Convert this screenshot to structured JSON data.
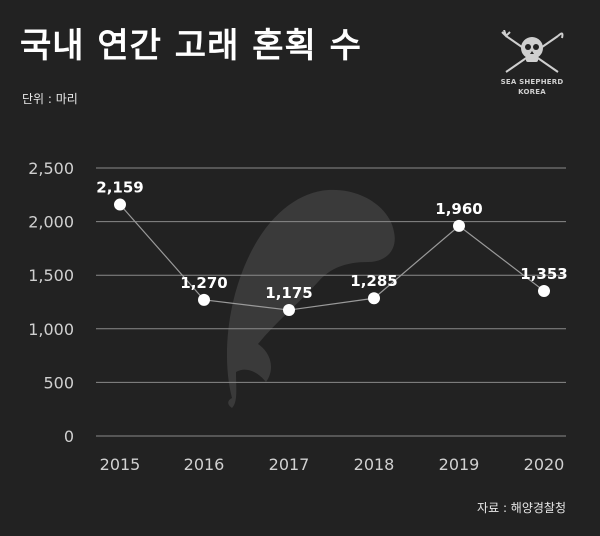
{
  "title": "국내 연간 고래 혼획 수",
  "unit_label": "단위 : 마리",
  "source_label": "자료 : 해양경찰청",
  "logo": {
    "line1": "SEA SHEPHERD",
    "line2": "KOREA",
    "icon": "jolly-roger-skull-icon"
  },
  "colors": {
    "background": "#222222",
    "line": "#9a9a9a",
    "marker": "#ffffff",
    "grid": "#8a8a8a",
    "whale": "#3a3a3a"
  },
  "chart_data": {
    "type": "line",
    "title": "국내 연간 고래 혼획 수",
    "xlabel": "",
    "ylabel": "",
    "categories": [
      "2015",
      "2016",
      "2017",
      "2018",
      "2019",
      "2020"
    ],
    "series": [
      {
        "values": [
          2159,
          1270,
          1175,
          1285,
          1960,
          1353
        ]
      }
    ],
    "data_labels": [
      "2,159",
      "1,270",
      "1,175",
      "1,285",
      "1,960",
      "1,353"
    ],
    "ylim": [
      0,
      2500
    ],
    "yticks": [
      0,
      500,
      1000,
      1500,
      2000,
      2500
    ],
    "ytick_labels": [
      "0",
      "500",
      "1,000",
      "1,500",
      "2,000",
      "2,500"
    ],
    "grid": true,
    "legend": "none"
  }
}
